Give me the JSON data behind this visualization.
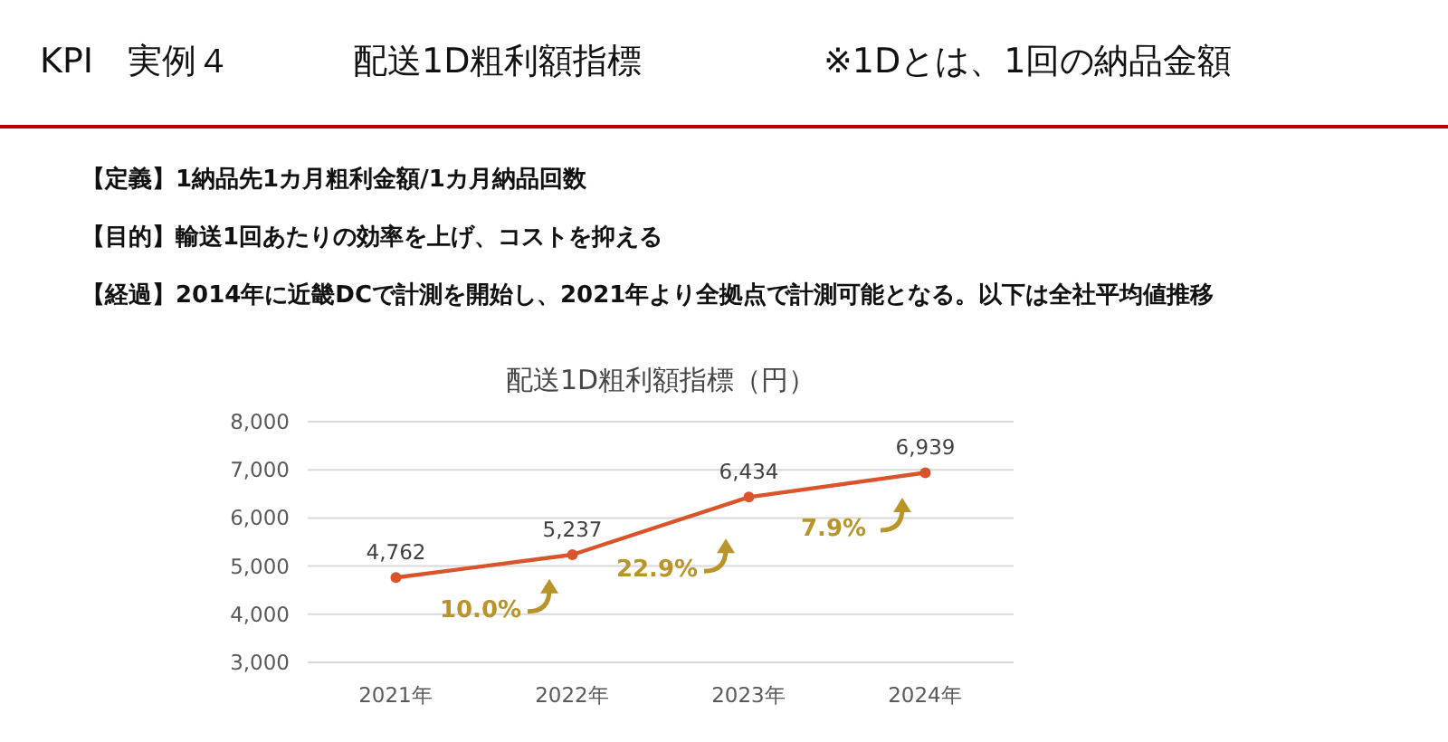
{
  "chart_data": {
    "type": "line",
    "title": "配送1D粗利額指標（円）",
    "categories": [
      "2021年",
      "2022年",
      "2023年",
      "2024年"
    ],
    "series": [
      {
        "color": "#d9542b",
        "values": [
          4762,
          5237,
          6434,
          6939
        ],
        "value_labels": [
          "4,762",
          "5,237",
          "6,434",
          "6,939"
        ]
      }
    ],
    "ylim": [
      3000,
      8000
    ],
    "yticks": [
      {
        "value": 3000,
        "label": "3,000"
      },
      {
        "value": 4000,
        "label": "4,000"
      },
      {
        "value": 5000,
        "label": "5,000"
      },
      {
        "value": 6000,
        "label": "6,000"
      },
      {
        "value": 7000,
        "label": "7,000"
      },
      {
        "value": 8000,
        "label": "8,000"
      }
    ],
    "grid": "y",
    "marker": "circle",
    "line_style": "solid",
    "annotations": [
      "KPI　実例４",
      "配送1D粗利額指標",
      "※1Dとは、1回の納品金額",
      "【定義】1納品先1カ月粗利金額/1カ月納品回数",
      "【目的】輸送1回あたりの効率を上げ、コストを抑える",
      "【経過】2014年に近畿DCで計測を開始し、2021年より全拠点で計測可能となる。以下は全社平均値推移",
      "10.0%",
      "22.9%",
      "7.9%"
    ]
  }
}
